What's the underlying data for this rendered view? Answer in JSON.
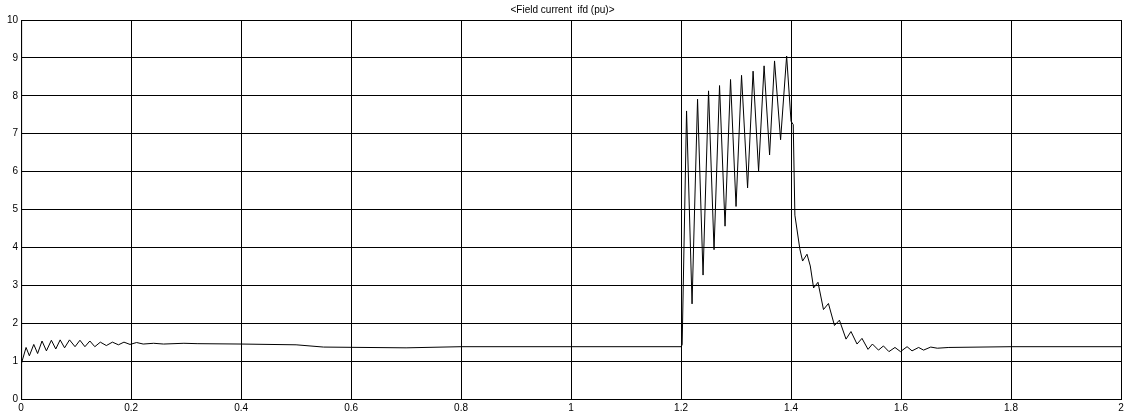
{
  "chart_data": {
    "type": "line",
    "title": "<Field current  ifd (pu)>",
    "grid": true,
    "xlim": [
      0,
      2
    ],
    "ylim": [
      0,
      10
    ],
    "xticks": [
      0,
      0.2,
      0.4,
      0.6,
      0.8,
      1,
      1.2,
      1.4,
      1.6,
      1.8,
      2
    ],
    "yticks": [
      0,
      1,
      2,
      3,
      4,
      5,
      6,
      7,
      8,
      9,
      10
    ],
    "series": [
      {
        "color": "#000000",
        "x": [
          0,
          0.009,
          0.015,
          0.023,
          0.03,
          0.038,
          0.046,
          0.055,
          0.063,
          0.071,
          0.079,
          0.088,
          0.098,
          0.107,
          0.116,
          0.125,
          0.134,
          0.144,
          0.155,
          0.166,
          0.177,
          0.187,
          0.198,
          0.21,
          0.222,
          0.241,
          0.259,
          0.296,
          0.32,
          0.4,
          0.5,
          0.55,
          0.7,
          0.8,
          1,
          1.2,
          1.202,
          1.21,
          1.22,
          1.23,
          1.24,
          1.25,
          1.26,
          1.27,
          1.28,
          1.29,
          1.3,
          1.31,
          1.321,
          1.331,
          1.341,
          1.351,
          1.361,
          1.37,
          1.381,
          1.392,
          1.4,
          1.404,
          1.407,
          1.416,
          1.421,
          1.429,
          1.435,
          1.441,
          1.449,
          1.459,
          1.468,
          1.479,
          1.488,
          1.5,
          1.509,
          1.52,
          1.529,
          1.54,
          1.548,
          1.559,
          1.568,
          1.578,
          1.589,
          1.599,
          1.611,
          1.62,
          1.632,
          1.641,
          1.654,
          1.666,
          1.687,
          1.8,
          2
        ],
        "values": [
          0.91,
          1.36,
          1.14,
          1.44,
          1.2,
          1.53,
          1.27,
          1.55,
          1.32,
          1.56,
          1.35,
          1.56,
          1.38,
          1.55,
          1.38,
          1.53,
          1.38,
          1.5,
          1.41,
          1.5,
          1.43,
          1.5,
          1.44,
          1.49,
          1.45,
          1.47,
          1.45,
          1.47,
          1.46,
          1.45,
          1.43,
          1.37,
          1.35,
          1.38,
          1.38,
          1.38,
          1.43,
          7.6,
          2.51,
          7.91,
          3.27,
          8.13,
          3.94,
          8.27,
          4.56,
          8.43,
          5.08,
          8.54,
          5.57,
          8.65,
          6.01,
          8.79,
          6.44,
          8.92,
          6.84,
          9.05,
          7.33,
          7.24,
          4.85,
          3.96,
          3.64,
          3.82,
          3.51,
          2.93,
          3.08,
          2.36,
          2.52,
          1.94,
          2.08,
          1.58,
          1.78,
          1.45,
          1.6,
          1.31,
          1.45,
          1.29,
          1.4,
          1.25,
          1.36,
          1.25,
          1.38,
          1.27,
          1.36,
          1.29,
          1.37,
          1.34,
          1.36,
          1.38,
          1.38
        ]
      }
    ]
  }
}
